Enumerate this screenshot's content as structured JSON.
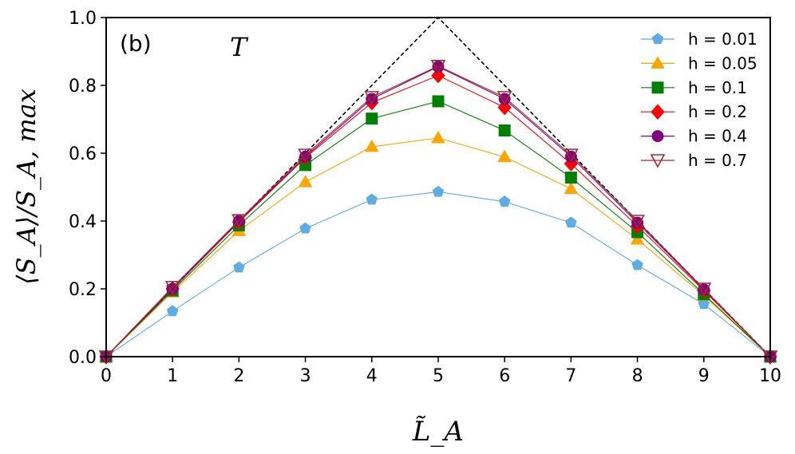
{
  "chart_data": {
    "type": "line",
    "panel_label": "(b)",
    "annotation": "T",
    "xlabel": "L̃_A",
    "ylabel": "⟨S_A⟩/S_A, max",
    "xlim": [
      0,
      10
    ],
    "ylim": [
      0,
      1.0
    ],
    "xticks": [
      "0",
      "1",
      "2",
      "3",
      "4",
      "5",
      "6",
      "7",
      "8",
      "9",
      "10"
    ],
    "yticks": [
      "0.0",
      "0.2",
      "0.4",
      "0.6",
      "0.8",
      "1.0"
    ],
    "grid": false,
    "legend_position": "top-right",
    "x": [
      0,
      1,
      2,
      3,
      4,
      5,
      6,
      7,
      8,
      9,
      10
    ],
    "reference_line": {
      "style": "dashed",
      "color": "#000000",
      "x": [
        0,
        5,
        10
      ],
      "y": [
        0,
        1,
        0
      ]
    },
    "series": [
      {
        "name": "h = 0.01",
        "color": "#5DADE2",
        "marker": "pentagon",
        "values": [
          0,
          0.134,
          0.263,
          0.378,
          0.463,
          0.486,
          0.457,
          0.395,
          0.27,
          0.155,
          0
        ]
      },
      {
        "name": "h = 0.05",
        "color": "#FFA500",
        "marker": "triangle-up",
        "values": [
          0,
          0.19,
          0.371,
          0.515,
          0.619,
          0.645,
          0.589,
          0.495,
          0.346,
          0.18,
          0
        ]
      },
      {
        "name": "h = 0.1",
        "color": "#008000",
        "marker": "square",
        "values": [
          0,
          0.195,
          0.387,
          0.565,
          0.702,
          0.753,
          0.667,
          0.528,
          0.367,
          0.184,
          0
        ]
      },
      {
        "name": "h = 0.2",
        "color": "#FF0000",
        "marker": "diamond",
        "values": [
          0,
          0.2,
          0.397,
          0.587,
          0.749,
          0.829,
          0.735,
          0.569,
          0.385,
          0.195,
          0
        ]
      },
      {
        "name": "h = 0.4",
        "color": "#800080",
        "marker": "circle",
        "values": [
          0,
          0.2,
          0.4,
          0.59,
          0.76,
          0.855,
          0.76,
          0.59,
          0.395,
          0.198,
          0
        ]
      },
      {
        "name": "h = 0.7",
        "color": "#A52A2A",
        "marker": "triangle-down-open",
        "values": [
          0,
          0.205,
          0.402,
          0.595,
          0.765,
          0.857,
          0.765,
          0.595,
          0.4,
          0.2,
          0
        ]
      }
    ]
  }
}
